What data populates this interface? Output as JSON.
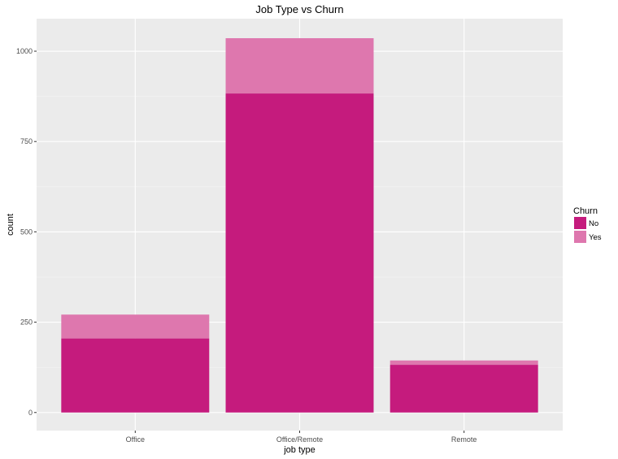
{
  "chart_data": {
    "type": "bar",
    "stacked": true,
    "title": "Job Type vs Churn",
    "xlabel": "job type",
    "ylabel": "count",
    "categories": [
      "Office",
      "Office/Remote",
      "Remote"
    ],
    "series": [
      {
        "name": "No",
        "values": [
          205,
          883,
          132
        ],
        "color": "#c51b7d"
      },
      {
        "name": "Yes",
        "values": [
          66,
          153,
          12
        ],
        "color": "#de77ae"
      }
    ],
    "ylim": [
      -50,
      1090
    ],
    "yticks": [
      0,
      250,
      500,
      750,
      1000
    ],
    "grid": true,
    "legend": {
      "title": "Churn",
      "position": "right"
    },
    "colors": {
      "panel": "#ebebeb",
      "grid_major": "#ffffff",
      "grid_minor": "#f5f5f5"
    }
  }
}
